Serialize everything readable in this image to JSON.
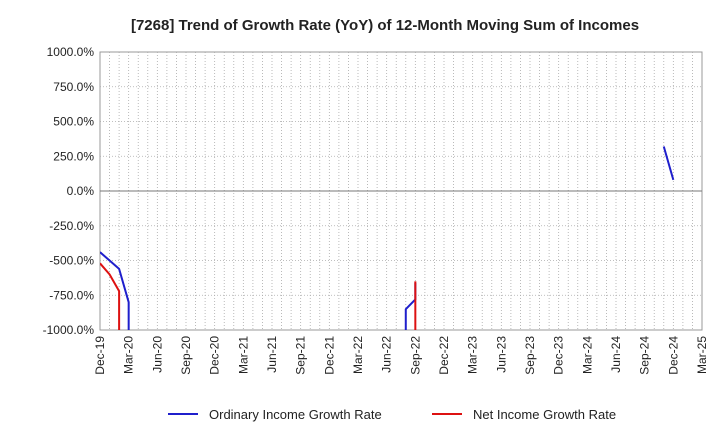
{
  "chart_data": {
    "type": "line",
    "title": "[7268]  Trend of Growth Rate (YoY) of 12-Month Moving Sum of Incomes",
    "xlabel": "",
    "ylabel": "",
    "x_tick_labels": [
      "Dec-19",
      "Mar-20",
      "Jun-20",
      "Sep-20",
      "Dec-20",
      "Mar-21",
      "Jun-21",
      "Sep-21",
      "Dec-21",
      "Mar-22",
      "Jun-22",
      "Sep-22",
      "Dec-22",
      "Mar-23",
      "Jun-23",
      "Sep-23",
      "Dec-23",
      "Mar-24",
      "Jun-24",
      "Sep-24",
      "Dec-24",
      "Mar-25"
    ],
    "y_tick_labels": [
      "1000.0%",
      "750.0%",
      "500.0%",
      "250.0%",
      "0.0%",
      "-250.0%",
      "-500.0%",
      "-750.0%",
      "-1000.0%"
    ],
    "y_ticks": [
      1000,
      750,
      500,
      250,
      0,
      -250,
      -500,
      -750,
      -1000
    ],
    "ylim": [
      -1000,
      1000
    ],
    "xlim": [
      "2019-12",
      "2025-03"
    ],
    "grid": true,
    "legend_position": "bottom",
    "series": [
      {
        "name": "Ordinary Income Growth Rate",
        "color": "#1f1fcc",
        "segments": [
          [
            [
              "2019-12",
              -440
            ],
            [
              "2020-01",
              -500
            ],
            [
              "2020-02",
              -560
            ],
            [
              "2020-03",
              -800
            ],
            [
              "2020-03",
              -1000
            ]
          ],
          [
            [
              "2022-08",
              -1000
            ],
            [
              "2022-08",
              -850
            ],
            [
              "2022-09",
              -780
            ],
            [
              "2022-09",
              -660
            ]
          ],
          [
            [
              "2024-11",
              320
            ],
            [
              "2024-12",
              80
            ]
          ]
        ]
      },
      {
        "name": "Net Income Growth Rate",
        "color": "#dd1111",
        "segments": [
          [
            [
              "2019-12",
              -520
            ],
            [
              "2020-01",
              -600
            ],
            [
              "2020-02",
              -720
            ],
            [
              "2020-02",
              -1000
            ]
          ],
          [
            [
              "2022-09",
              -650
            ],
            [
              "2022-09",
              -1000
            ]
          ]
        ]
      }
    ]
  }
}
